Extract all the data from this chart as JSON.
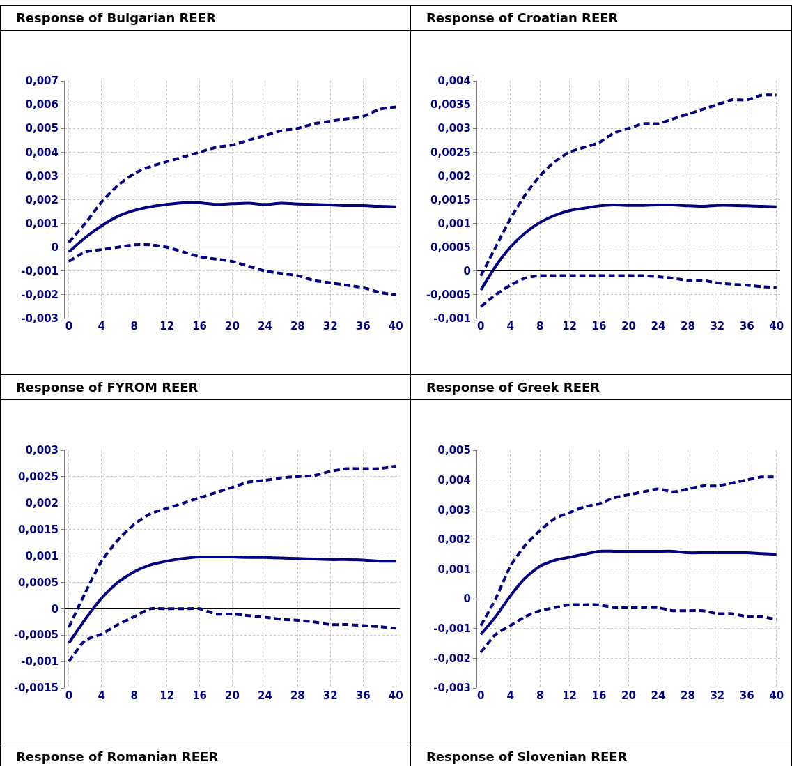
{
  "chart_data": [
    {
      "type": "line",
      "title": "Response of Bulgarian REER",
      "grid": true,
      "marker": "none",
      "xlim": [
        -0.5,
        40.5
      ],
      "xticks": [
        0,
        4,
        8,
        12,
        16,
        20,
        24,
        28,
        32,
        36,
        40
      ],
      "ylim": [
        -0.003,
        0.007
      ],
      "yticks": [
        {
          "value": -0.003,
          "label": "-0,003"
        },
        {
          "value": -0.002,
          "label": "-0,002"
        },
        {
          "value": -0.001,
          "label": "-0,001"
        },
        {
          "value": 0,
          "label": "0"
        },
        {
          "value": 0.001,
          "label": "0,001"
        },
        {
          "value": 0.002,
          "label": "0,002"
        },
        {
          "value": 0.003,
          "label": "0,003"
        },
        {
          "value": 0.004,
          "label": "0,004"
        },
        {
          "value": 0.005,
          "label": "0,005"
        },
        {
          "value": 0.006,
          "label": "0,006"
        },
        {
          "value": 0.007,
          "label": "0,007"
        }
      ],
      "x": [
        0,
        2,
        4,
        6,
        8,
        10,
        12,
        14,
        16,
        18,
        20,
        22,
        24,
        26,
        28,
        30,
        32,
        34,
        36,
        38,
        40
      ],
      "series": [
        {
          "color": "#000080",
          "line_style": "dashed",
          "values": [
            0.0002,
            0.001,
            0.0019,
            0.0026,
            0.0031,
            0.0034,
            0.0036,
            0.0038,
            0.004,
            0.0042,
            0.0043,
            0.0045,
            0.0047,
            0.0049,
            0.005,
            0.0052,
            0.0053,
            0.0054,
            0.0055,
            0.0058,
            0.0059
          ]
        },
        {
          "color": "#000080",
          "line_style": "solid",
          "values": [
            -0.0002,
            0.0004,
            0.0009,
            0.0013,
            0.00155,
            0.0017,
            0.0018,
            0.00187,
            0.00187,
            0.0018,
            0.00183,
            0.00185,
            0.0018,
            0.00185,
            0.00182,
            0.0018,
            0.00178,
            0.00175,
            0.00175,
            0.00172,
            0.0017
          ]
        },
        {
          "color": "#000080",
          "line_style": "dashed",
          "values": [
            -0.0006,
            -0.0002,
            -0.0001,
            0,
            0.0001,
            0.0001,
            0,
            -0.0002,
            -0.0004,
            -0.0005,
            -0.0006,
            -0.0008,
            -0.001,
            -0.0011,
            -0.0012,
            -0.0014,
            -0.0015,
            -0.0016,
            -0.0017,
            -0.0019,
            -0.002
          ]
        }
      ]
    },
    {
      "type": "line",
      "title": "Response of Croatian REER",
      "grid": true,
      "marker": "none",
      "xlim": [
        -0.5,
        40.5
      ],
      "xticks": [
        0,
        4,
        8,
        12,
        16,
        20,
        24,
        28,
        32,
        36,
        40
      ],
      "ylim": [
        -0.001,
        0.004
      ],
      "yticks": [
        {
          "value": -0.001,
          "label": "-0,001"
        },
        {
          "value": -0.0005,
          "label": "-0,0005"
        },
        {
          "value": 0,
          "label": "0"
        },
        {
          "value": 0.0005,
          "label": "0,0005"
        },
        {
          "value": 0.001,
          "label": "0,001"
        },
        {
          "value": 0.0015,
          "label": "0,0015"
        },
        {
          "value": 0.002,
          "label": "0,002"
        },
        {
          "value": 0.0025,
          "label": "0,0025"
        },
        {
          "value": 0.003,
          "label": "0,003"
        },
        {
          "value": 0.0035,
          "label": "0,0035"
        },
        {
          "value": 0.004,
          "label": "0,004"
        }
      ],
      "x": [
        0,
        2,
        4,
        6,
        8,
        10,
        12,
        14,
        16,
        18,
        20,
        22,
        24,
        26,
        28,
        30,
        32,
        34,
        36,
        38,
        40
      ],
      "series": [
        {
          "color": "#000080",
          "line_style": "dashed",
          "values": [
            -0.0001,
            0.0005,
            0.0011,
            0.0016,
            0.002,
            0.0023,
            0.0025,
            0.0026,
            0.0027,
            0.0029,
            0.003,
            0.0031,
            0.0031,
            0.0032,
            0.0033,
            0.0034,
            0.0035,
            0.0036,
            0.0036,
            0.0037,
            0.0037
          ]
        },
        {
          "color": "#000080",
          "line_style": "solid",
          "values": [
            -0.0004,
            0.0001,
            0.0005,
            0.0008,
            0.00102,
            0.00117,
            0.00127,
            0.00132,
            0.00137,
            0.00139,
            0.00138,
            0.00138,
            0.00139,
            0.00139,
            0.00137,
            0.00136,
            0.00138,
            0.00138,
            0.00137,
            0.00136,
            0.00135
          ]
        },
        {
          "color": "#000080",
          "line_style": "dashed",
          "values": [
            -0.00075,
            -0.0005,
            -0.0003,
            -0.00015,
            -0.0001,
            -0.0001,
            -0.0001,
            -0.0001,
            -0.0001,
            -0.0001,
            -0.0001,
            -0.0001,
            -0.00012,
            -0.00015,
            -0.0002,
            -0.0002,
            -0.00025,
            -0.00028,
            -0.0003,
            -0.00033,
            -0.00035
          ]
        }
      ]
    },
    {
      "type": "line",
      "title": "Response of FYROM REER",
      "grid": true,
      "marker": "none",
      "xlim": [
        -0.5,
        40.5
      ],
      "xticks": [
        0,
        4,
        8,
        12,
        16,
        20,
        24,
        28,
        32,
        36,
        40
      ],
      "ylim": [
        -0.0015,
        0.003
      ],
      "yticks": [
        {
          "value": -0.0015,
          "label": "-0,0015"
        },
        {
          "value": -0.001,
          "label": "-0,001"
        },
        {
          "value": -0.0005,
          "label": "-0,0005"
        },
        {
          "value": 0,
          "label": "0"
        },
        {
          "value": 0.0005,
          "label": "0,0005"
        },
        {
          "value": 0.001,
          "label": "0,001"
        },
        {
          "value": 0.0015,
          "label": "0,0015"
        },
        {
          "value": 0.002,
          "label": "0,002"
        },
        {
          "value": 0.0025,
          "label": "0,0025"
        },
        {
          "value": 0.003,
          "label": "0,003"
        }
      ],
      "x": [
        0,
        2,
        4,
        6,
        8,
        10,
        12,
        14,
        16,
        18,
        20,
        22,
        24,
        26,
        28,
        30,
        32,
        34,
        36,
        38,
        40
      ],
      "series": [
        {
          "color": "#000080",
          "line_style": "dashed",
          "values": [
            -0.00035,
            0.0003,
            0.0009,
            0.0013,
            0.0016,
            0.0018,
            0.0019,
            0.002,
            0.0021,
            0.0022,
            0.0023,
            0.0024,
            0.00243,
            0.00248,
            0.0025,
            0.00252,
            0.0026,
            0.00265,
            0.00265,
            0.00265,
            0.0027
          ]
        },
        {
          "color": "#000080",
          "line_style": "solid",
          "values": [
            -0.00065,
            -0.0002,
            0.0002,
            0.0005,
            0.0007,
            0.00083,
            0.0009,
            0.00095,
            0.00098,
            0.00098,
            0.00098,
            0.00097,
            0.00097,
            0.00096,
            0.00095,
            0.00094,
            0.00093,
            0.00093,
            0.00092,
            0.0009,
            0.0009
          ]
        },
        {
          "color": "#000080",
          "line_style": "dashed",
          "values": [
            -0.001,
            -0.0006,
            -0.00048,
            -0.0003,
            -0.00015,
            0,
            0,
            0,
            0,
            -0.0001,
            -0.0001,
            -0.00013,
            -0.00016,
            -0.0002,
            -0.00022,
            -0.00025,
            -0.0003,
            -0.0003,
            -0.00032,
            -0.00034,
            -0.00037
          ]
        }
      ]
    },
    {
      "type": "line",
      "title": "Response of Greek REER",
      "grid": true,
      "marker": "none",
      "xlim": [
        -0.5,
        40.5
      ],
      "xticks": [
        0,
        4,
        8,
        12,
        16,
        20,
        24,
        28,
        32,
        36,
        40
      ],
      "ylim": [
        -0.003,
        0.005
      ],
      "yticks": [
        {
          "value": -0.003,
          "label": "-0,003"
        },
        {
          "value": -0.002,
          "label": "-0,002"
        },
        {
          "value": -0.001,
          "label": "-0,001"
        },
        {
          "value": 0,
          "label": "0"
        },
        {
          "value": 0.001,
          "label": "0,001"
        },
        {
          "value": 0.002,
          "label": "0,002"
        },
        {
          "value": 0.003,
          "label": "0,003"
        },
        {
          "value": 0.004,
          "label": "0,004"
        },
        {
          "value": 0.005,
          "label": "0,005"
        }
      ],
      "x": [
        0,
        2,
        4,
        6,
        8,
        10,
        12,
        14,
        16,
        18,
        20,
        22,
        24,
        26,
        28,
        30,
        32,
        34,
        36,
        38,
        40
      ],
      "series": [
        {
          "color": "#000080",
          "line_style": "dashed",
          "values": [
            -0.0009,
            0,
            0.0011,
            0.0018,
            0.0023,
            0.0027,
            0.0029,
            0.0031,
            0.0032,
            0.0034,
            0.0035,
            0.0036,
            0.0037,
            0.0036,
            0.0037,
            0.0038,
            0.0038,
            0.0039,
            0.004,
            0.0041,
            0.0041
          ]
        },
        {
          "color": "#000080",
          "line_style": "solid",
          "values": [
            -0.0012,
            -0.0006,
            0.0001,
            0.0007,
            0.0011,
            0.0013,
            0.0014,
            0.0015,
            0.0016,
            0.0016,
            0.0016,
            0.0016,
            0.0016,
            0.0016,
            0.00155,
            0.00155,
            0.00155,
            0.00155,
            0.00155,
            0.00152,
            0.0015
          ]
        },
        {
          "color": "#000080",
          "line_style": "dashed",
          "values": [
            -0.0018,
            -0.0012,
            -0.0009,
            -0.0006,
            -0.0004,
            -0.0003,
            -0.0002,
            -0.0002,
            -0.0002,
            -0.0003,
            -0.0003,
            -0.0003,
            -0.0003,
            -0.0004,
            -0.0004,
            -0.0004,
            -0.0005,
            -0.0005,
            -0.0006,
            -0.0006,
            -0.0007
          ]
        }
      ]
    },
    {
      "type": "other",
      "title": "Response of Romanian REER"
    },
    {
      "type": "other",
      "title": "Response of Slovenian REER"
    }
  ]
}
